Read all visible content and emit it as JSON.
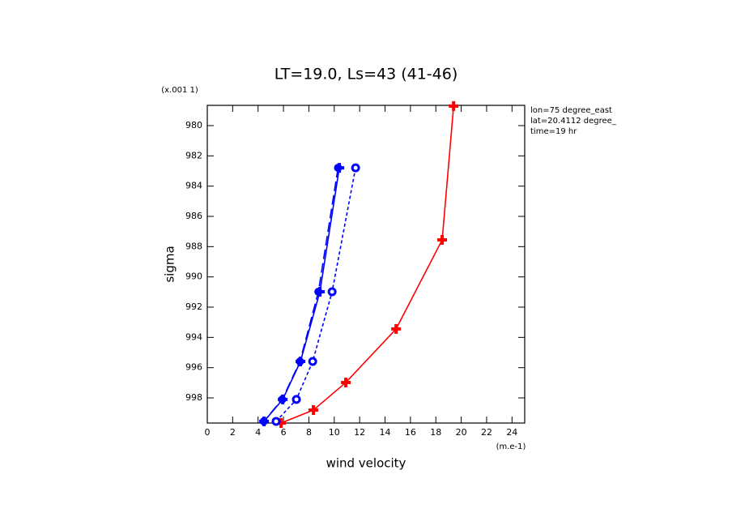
{
  "chart_data": {
    "type": "line",
    "title": "LT=19.0, Ls=43 (41-46)",
    "y_scale_label": "(x.001 1)",
    "y_label": "sigma",
    "x_label": "wind velocity",
    "x_unit_label": "(m.e-1)",
    "annotations": [
      "lon=75 degree_east",
      "lat=20.4112 degree_",
      "time=19 hr"
    ],
    "xlim": [
      0,
      25
    ],
    "ylim": [
      999.66,
      978.66
    ],
    "xticks": [
      0,
      2,
      4,
      6,
      8,
      10,
      12,
      14,
      16,
      18,
      20,
      22,
      24
    ],
    "yticks": [
      980,
      982,
      984,
      986,
      988,
      990,
      992,
      994,
      996,
      998
    ],
    "series": [
      {
        "color": "#ff0000",
        "dash": "solid",
        "marker": "plus",
        "x": [
          19.4,
          18.5,
          14.87,
          10.91,
          8.36,
          5.81
        ],
        "values": [
          978.71,
          987.55,
          993.44,
          996.98,
          998.8,
          999.66
        ]
      },
      {
        "color": "#0000ff",
        "dash": "solid",
        "marker": "plus",
        "x": [
          10.4,
          8.87,
          7.34,
          5.94,
          4.47
        ],
        "values": [
          982.79,
          990.98,
          995.59,
          998.1,
          999.55
        ]
      },
      {
        "color": "#0000ff",
        "dash": "long",
        "marker": "dot",
        "x": [
          10.3,
          8.75,
          7.3,
          5.9,
          4.45
        ],
        "values": [
          982.79,
          990.98,
          995.59,
          998.1,
          999.55
        ]
      },
      {
        "color": "#0000ff",
        "dash": "short",
        "marker": "ring",
        "x": [
          11.68,
          9.83,
          8.3,
          7.02,
          5.42
        ],
        "values": [
          982.79,
          990.98,
          995.59,
          998.1,
          999.55
        ]
      }
    ]
  }
}
